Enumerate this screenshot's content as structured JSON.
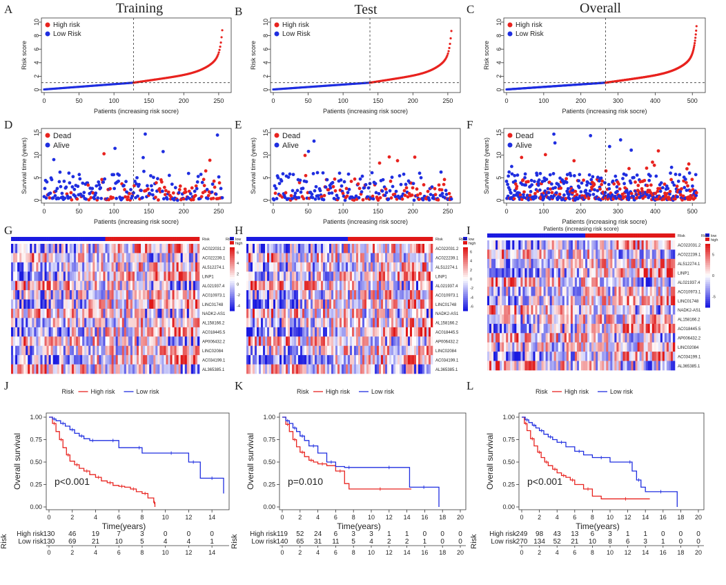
{
  "colors": {
    "high": "#e8231f",
    "low": "#1f2ee0",
    "hmHigh": "#e01818",
    "hmLow": "#1a1ae0",
    "hmMid": "#ffffff"
  },
  "chart_data": [
    {
      "panel": "A",
      "type": "scatter",
      "title": "Training",
      "kind": "riskscore",
      "xlabel": "Patients (increasing risk socre)",
      "ylabel": "Risk score",
      "xlim": [
        0,
        260
      ],
      "ylim": [
        0,
        10
      ],
      "xticks": [
        0,
        50,
        100,
        150,
        200,
        250
      ],
      "yticks": [
        0,
        2,
        4,
        6,
        8,
        10
      ],
      "n": 260,
      "cutoff_index": 130,
      "cutoff_score": 1.05,
      "legend": [
        "High risk",
        "Low Risk"
      ]
    },
    {
      "panel": "B",
      "type": "scatter",
      "title": "Test",
      "kind": "riskscore",
      "xlabel": "Patients (increasing risk socre)",
      "ylabel": "Risk score",
      "xlim": [
        0,
        260
      ],
      "ylim": [
        0,
        10
      ],
      "xticks": [
        0,
        50,
        100,
        150,
        200,
        250
      ],
      "yticks": [
        0,
        2,
        4,
        6,
        8,
        10
      ],
      "n": 259,
      "cutoff_index": 140,
      "cutoff_score": 1.05,
      "legend": [
        "High risk",
        "Low Risk"
      ]
    },
    {
      "panel": "C",
      "type": "scatter",
      "title": "Overall",
      "kind": "riskscore",
      "xlabel": "Patients (increasing risk socre)",
      "ylabel": "Risk score",
      "xlim": [
        0,
        520
      ],
      "ylim": [
        0,
        10
      ],
      "xticks": [
        0,
        100,
        200,
        300,
        400,
        500
      ],
      "yticks": [
        0,
        2,
        4,
        6,
        8,
        10
      ],
      "n": 519,
      "cutoff_index": 270,
      "cutoff_score": 1.05,
      "legend": [
        "High risk",
        "Low Risk"
      ]
    },
    {
      "panel": "D",
      "type": "scatter",
      "kind": "survtime",
      "xlabel": "Patients (increasing risk socre)",
      "ylabel": "Survival time (years)",
      "xlim": [
        0,
        260
      ],
      "ylim": [
        0,
        15
      ],
      "xticks": [
        0,
        50,
        100,
        150,
        200,
        250
      ],
      "yticks": [
        0,
        5,
        10,
        15
      ],
      "n": 260,
      "cutoff_index": 130,
      "legend": [
        "Dead",
        "Alive"
      ]
    },
    {
      "panel": "E",
      "type": "scatter",
      "kind": "survtime",
      "xlabel": "Patients (increasing risk socre)",
      "ylabel": "Survival time (years)",
      "xlim": [
        0,
        260
      ],
      "ylim": [
        0,
        15
      ],
      "xticks": [
        0,
        50,
        100,
        150,
        200,
        250
      ],
      "yticks": [
        0,
        5,
        10,
        15
      ],
      "n": 259,
      "cutoff_index": 140,
      "legend": [
        "Dead",
        "Alive"
      ]
    },
    {
      "panel": "F",
      "type": "scatter",
      "kind": "survtime",
      "xlabel": "Patients (increasing risk socre)",
      "ylabel": "Survival time (years)",
      "xlim": [
        0,
        520
      ],
      "ylim": [
        0,
        15
      ],
      "xticks": [
        0,
        100,
        200,
        300,
        400,
        500
      ],
      "yticks": [
        0,
        5,
        10,
        15
      ],
      "n": 519,
      "cutoff_index": 270,
      "legend": [
        "Dead",
        "Alive"
      ]
    },
    {
      "panel": "G",
      "type": "heatmap",
      "risk_label": "Risk",
      "risk_legend": [
        "low",
        "high"
      ],
      "genes": [
        "AC022031.2",
        "AC022239.1",
        "AL512274.1",
        "LINP1",
        "AL021937.4",
        "AC010973.1",
        "LINC01748",
        "NADK2-AS1",
        "AL158166.2",
        "AC018445.5",
        "AP006432.2",
        "LINC02084",
        "AC034199.1",
        "AL365385.1"
      ],
      "scale_ticks": [
        "6",
        "4",
        "2",
        "0",
        "-2",
        "-4"
      ],
      "cols": 260,
      "split": 130
    },
    {
      "panel": "H",
      "type": "heatmap",
      "risk_label": "Risk",
      "risk_legend": [
        "low",
        "high"
      ],
      "genes": [
        "AC022031.2",
        "AC022239.1",
        "AL512274.1",
        "LINP1",
        "AL021937.4",
        "AC010973.1",
        "LINC01748",
        "NADK2-AS1",
        "AL158166.2",
        "AC018445.5",
        "AP006432.2",
        "LINC02084",
        "AC034199.1",
        "AL365385.1"
      ],
      "scale_ticks": [
        "6",
        "4",
        "2",
        "0",
        "-2",
        "-4",
        "-6"
      ],
      "cols": 259,
      "split": 140
    },
    {
      "panel": "I",
      "type": "heatmap",
      "risk_label": "Risk",
      "risk_legend": [
        "low",
        "high"
      ],
      "genes": [
        "AC022031.2",
        "AC022239.1",
        "AL512274.1",
        "LINP1",
        "AL021937.4",
        "AC010973.1",
        "LINC01748",
        "NADK2-AS1",
        "AL158166.2",
        "AC018445.5",
        "AP006432.2",
        "LINC02084",
        "AC034199.1",
        "AL365385.1"
      ],
      "scale_ticks": [
        "5",
        "0",
        "-5"
      ],
      "cols": 519,
      "split": 270,
      "xlabel": "Patients (increasing risk score)"
    },
    {
      "panel": "J",
      "type": "line",
      "kind": "km",
      "legend_title": "Risk",
      "legend": [
        "High risk",
        "Low risk"
      ],
      "xlabel": "Time(years)",
      "ylabel": "Overall survival",
      "xlim": [
        0,
        15
      ],
      "xticks": [
        0,
        2,
        4,
        6,
        8,
        10,
        12,
        14
      ],
      "ylim": [
        0,
        1
      ],
      "yticks": [
        "0.00",
        "0.25",
        "0.50",
        "0.75",
        "1.00"
      ],
      "pvalue": "p<0.001",
      "series": [
        {
          "name": "High risk",
          "x": [
            0,
            0.3,
            0.6,
            0.9,
            1.2,
            1.5,
            1.8,
            2.2,
            2.6,
            3.0,
            3.5,
            4.0,
            4.5,
            5.0,
            5.5,
            6.0,
            6.5,
            7.0,
            7.5,
            8.0,
            8.5,
            9.0,
            9.1
          ],
          "y": [
            1.0,
            0.93,
            0.84,
            0.75,
            0.66,
            0.58,
            0.51,
            0.47,
            0.43,
            0.4,
            0.36,
            0.33,
            0.29,
            0.27,
            0.24,
            0.23,
            0.22,
            0.2,
            0.17,
            0.15,
            0.1,
            0.05,
            0.0
          ]
        },
        {
          "name": "Low risk",
          "x": [
            0,
            0.3,
            0.6,
            1.0,
            1.4,
            1.8,
            2.2,
            2.6,
            3.0,
            3.5,
            4.0,
            5.0,
            6.0,
            7.5,
            8.0,
            10.0,
            11.0,
            12.0,
            12.8,
            13.0,
            15.0
          ],
          "y": [
            1.0,
            0.98,
            0.96,
            0.93,
            0.9,
            0.86,
            0.82,
            0.79,
            0.76,
            0.74,
            0.74,
            0.74,
            0.66,
            0.66,
            0.6,
            0.6,
            0.6,
            0.5,
            0.5,
            0.32,
            0.15
          ]
        }
      ],
      "table_label": "Risk",
      "table": {
        "times": [
          0,
          2,
          4,
          6,
          8,
          10,
          12,
          14
        ],
        "rows": [
          {
            "name": "High risk",
            "values": [
              "130",
              "46",
              "19",
              "7",
              "3",
              "0",
              "0",
              "0"
            ]
          },
          {
            "name": "Low risk",
            "values": [
              "130",
              "69",
              "21",
              "10",
              "5",
              "4",
              "4",
              "1"
            ]
          }
        ]
      }
    },
    {
      "panel": "K",
      "type": "line",
      "kind": "km",
      "legend_title": "Risk",
      "legend": [
        "High risk",
        "Low risk"
      ],
      "xlabel": "Time(years)",
      "ylabel": "Overall survival",
      "xlim": [
        0,
        20
      ],
      "xticks": [
        0,
        2,
        4,
        6,
        8,
        10,
        12,
        14,
        16,
        18,
        20
      ],
      "ylim": [
        0,
        1
      ],
      "yticks": [
        "0.00",
        "0.25",
        "0.50",
        "0.75",
        "1.00"
      ],
      "pvalue": "p=0.010",
      "series": [
        {
          "name": "High risk",
          "x": [
            0,
            0.4,
            0.8,
            1.2,
            1.6,
            2.0,
            2.5,
            3.0,
            3.5,
            4.0,
            5.0,
            6.0,
            7.0,
            7.5,
            14.5
          ],
          "y": [
            1.0,
            0.92,
            0.84,
            0.75,
            0.67,
            0.61,
            0.56,
            0.52,
            0.5,
            0.48,
            0.46,
            0.4,
            0.26,
            0.2,
            0.2
          ]
        },
        {
          "name": "Low risk",
          "x": [
            0,
            0.4,
            0.8,
            1.2,
            1.6,
            2.0,
            2.5,
            3.0,
            4.0,
            5.0,
            6.0,
            7.0,
            8.0,
            10.0,
            14.0,
            14.3,
            17.5,
            17.6
          ],
          "y": [
            1.0,
            0.96,
            0.93,
            0.88,
            0.84,
            0.79,
            0.74,
            0.68,
            0.6,
            0.5,
            0.45,
            0.44,
            0.44,
            0.44,
            0.44,
            0.22,
            0.22,
            0.0
          ]
        }
      ],
      "table_label": "Risk",
      "table": {
        "times": [
          0,
          2,
          4,
          6,
          8,
          10,
          12,
          14,
          16,
          18,
          20
        ],
        "rows": [
          {
            "name": "High risk",
            "values": [
              "119",
              "52",
              "24",
              "6",
              "3",
              "3",
              "1",
              "1",
              "0",
              "0",
              "0"
            ]
          },
          {
            "name": "Low risk",
            "values": [
              "140",
              "65",
              "31",
              "11",
              "5",
              "4",
              "2",
              "2",
              "1",
              "0",
              "0"
            ]
          }
        ]
      }
    },
    {
      "panel": "L",
      "type": "line",
      "kind": "km",
      "legend_title": "Risk",
      "legend": [
        "High risk",
        "Low risk"
      ],
      "xlabel": "Time(years)",
      "ylabel": "Overall survival",
      "xlim": [
        0,
        20
      ],
      "xticks": [
        0,
        2,
        4,
        6,
        8,
        10,
        12,
        14,
        16,
        18,
        20
      ],
      "ylim": [
        0,
        1
      ],
      "yticks": [
        "0.00",
        "0.25",
        "0.50",
        "0.75",
        "1.00"
      ],
      "pvalue": "p<0.001",
      "series": [
        {
          "name": "High risk",
          "x": [
            0,
            0.3,
            0.6,
            1.0,
            1.4,
            1.8,
            2.2,
            2.6,
            3.0,
            3.5,
            4.0,
            4.5,
            5.0,
            5.5,
            6.0,
            7.0,
            8.0,
            9.0,
            14.5
          ],
          "y": [
            1.0,
            0.93,
            0.85,
            0.76,
            0.68,
            0.61,
            0.55,
            0.5,
            0.46,
            0.42,
            0.38,
            0.35,
            0.33,
            0.3,
            0.25,
            0.2,
            0.12,
            0.09,
            0.09
          ]
        },
        {
          "name": "Low risk",
          "x": [
            0,
            0.4,
            0.8,
            1.2,
            1.6,
            2.0,
            2.5,
            3.0,
            3.5,
            4.0,
            5.0,
            6.0,
            7.0,
            8.0,
            10.0,
            12.0,
            12.5,
            13.0,
            13.5,
            14.0,
            17.5,
            17.6
          ],
          "y": [
            1.0,
            0.97,
            0.94,
            0.91,
            0.88,
            0.85,
            0.81,
            0.78,
            0.75,
            0.72,
            0.67,
            0.62,
            0.58,
            0.55,
            0.5,
            0.5,
            0.4,
            0.3,
            0.22,
            0.17,
            0.17,
            0.0
          ]
        }
      ],
      "table_label": "Risk",
      "table": {
        "times": [
          0,
          2,
          4,
          6,
          8,
          10,
          12,
          14,
          16,
          18,
          20
        ],
        "rows": [
          {
            "name": "High risk",
            "values": [
              "249",
              "98",
              "43",
              "13",
              "6",
              "3",
              "1",
              "1",
              "0",
              "0",
              "0"
            ]
          },
          {
            "name": "Low risk",
            "values": [
              "270",
              "134",
              "52",
              "21",
              "10",
              "8",
              "6",
              "3",
              "1",
              "0",
              "0"
            ]
          }
        ]
      }
    }
  ]
}
